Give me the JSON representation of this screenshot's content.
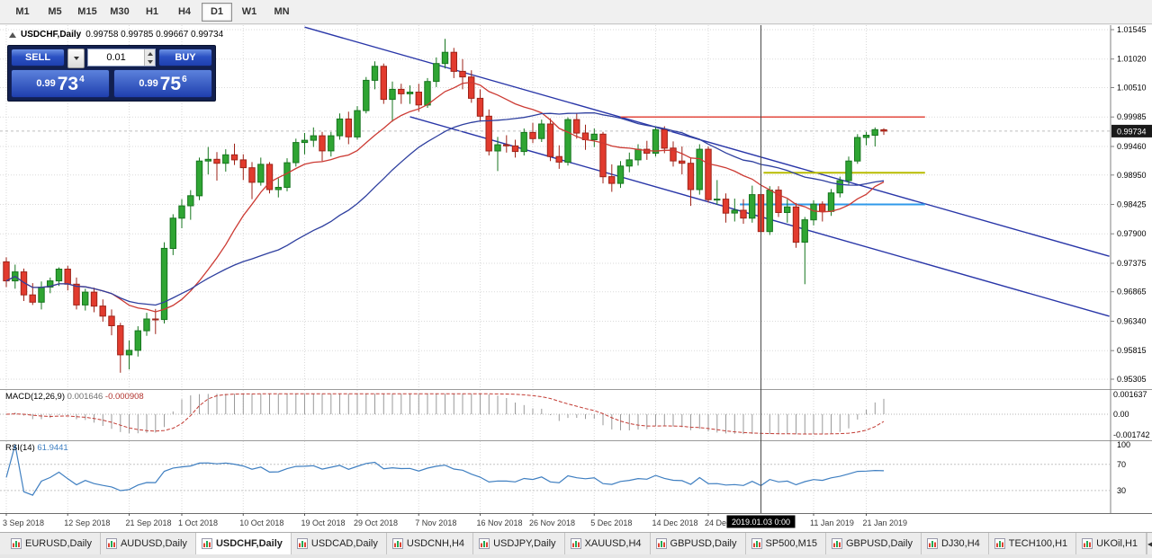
{
  "toolbar": {
    "timeframes": [
      "M1",
      "M5",
      "M15",
      "M30",
      "H1",
      "H4",
      "D1",
      "W1",
      "MN"
    ],
    "active": "D1"
  },
  "chart": {
    "title_symbol": "USDCHF,Daily",
    "title_ohlc": "0.99758 0.99785 0.99667 0.99734",
    "price_axis_labels": [
      "1.01545",
      "1.01020",
      "1.00510",
      "0.99985",
      "0.99460",
      "0.98950",
      "0.98425",
      "0.97900",
      "0.97375",
      "0.96865",
      "0.96340",
      "0.95815",
      "0.95305"
    ],
    "current_price_tag": "0.99734"
  },
  "trade_panel": {
    "sell_label": "SELL",
    "buy_label": "BUY",
    "volume_value": "0.01",
    "sell_price_main": "0.99",
    "sell_price_big": "73",
    "sell_price_sup": "4",
    "buy_price_main": "0.99",
    "buy_price_big": "75",
    "buy_price_sup": "6"
  },
  "macd_panel": {
    "label": "MACD(12,26,9)",
    "value_main": "0.001646",
    "value_signal": "-0.000908",
    "axis_labels": [
      "0.001637",
      "0.00",
      "-0.001742"
    ]
  },
  "rsi_panel": {
    "label": "RSI(14)",
    "value": "61.9441",
    "axis_labels": [
      "100",
      "70",
      "30"
    ]
  },
  "tab_bar": {
    "scroll_left": "◀",
    "scroll_right": "▶"
  },
  "tabs": [
    "EURUSD,Daily",
    "AUDUSD,Daily",
    "USDCHF,Daily",
    "USDCAD,Daily",
    "USDCNH,H4",
    "USDJPY,Daily",
    "XAUUSD,H4",
    "GBPUSD,Daily",
    "SP500,M15",
    "GBPUSD,Daily",
    "DJ30,H4",
    "TECH100,H1",
    "UKOil,H1"
  ],
  "active_tab": "USDCHF,Daily",
  "colors": {
    "candle_up": "#2fa533",
    "candle_up_border": "#17761f",
    "candle_down": "#e23b2e",
    "candle_down_border": "#9e2318",
    "channel": "#2936a8",
    "macd_histogram": "#9a9a9a",
    "macd_signal": "#c23b33",
    "rsi_line": "#3f7fc1",
    "hline_resistance": "#e0382d",
    "hline_yellow": "#b8bb00",
    "hline_blue": "#2f99ea",
    "buy_sell_button": "#2c52c4",
    "trade_panel_bg": "#12204f"
  },
  "chart_data": {
    "type": "candlestick",
    "symbol": "USDCHF",
    "timeframe": "Daily",
    "current_ohlc": {
      "open": 0.99758,
      "high": 0.99785,
      "low": 0.99667,
      "close": 0.99734
    },
    "price_range": {
      "top": 1.01545,
      "bottom": 0.95305
    },
    "crosshair": {
      "index": 86,
      "label": "2019.01.03 0:00"
    },
    "x_tick_labels": [
      {
        "i": 0,
        "label": "3 Sep 2018"
      },
      {
        "i": 7,
        "label": "12 Sep 2018"
      },
      {
        "i": 14,
        "label": "21 Sep 2018"
      },
      {
        "i": 20,
        "label": "1 Oct 2018"
      },
      {
        "i": 27,
        "label": "10 Oct 2018"
      },
      {
        "i": 34,
        "label": "19 Oct 2018"
      },
      {
        "i": 40,
        "label": "29 Oct 2018"
      },
      {
        "i": 47,
        "label": "7 Nov 2018"
      },
      {
        "i": 54,
        "label": "16 Nov 2018"
      },
      {
        "i": 60,
        "label": "26 Nov 2018"
      },
      {
        "i": 67,
        "label": "5 Dec 2018"
      },
      {
        "i": 74,
        "label": "14 Dec 2018"
      },
      {
        "i": 80,
        "label": "24 Dec 2018"
      },
      {
        "i": 92,
        "label": "11 Jan 2019"
      },
      {
        "i": 98,
        "label": "21 Jan 2019"
      }
    ],
    "dates": [
      "2018-09-03",
      "2018-09-04",
      "2018-09-05",
      "2018-09-06",
      "2018-09-07",
      "2018-09-10",
      "2018-09-11",
      "2018-09-12",
      "2018-09-13",
      "2018-09-14",
      "2018-09-17",
      "2018-09-18",
      "2018-09-19",
      "2018-09-20",
      "2018-09-21",
      "2018-09-24",
      "2018-09-25",
      "2018-09-26",
      "2018-09-27",
      "2018-09-28",
      "2018-10-01",
      "2018-10-02",
      "2018-10-03",
      "2018-10-04",
      "2018-10-05",
      "2018-10-08",
      "2018-10-09",
      "2018-10-10",
      "2018-10-11",
      "2018-10-12",
      "2018-10-15",
      "2018-10-16",
      "2018-10-17",
      "2018-10-18",
      "2018-10-19",
      "2018-10-22",
      "2018-10-23",
      "2018-10-24",
      "2018-10-25",
      "2018-10-26",
      "2018-10-29",
      "2018-10-30",
      "2018-10-31",
      "2018-11-01",
      "2018-11-02",
      "2018-11-05",
      "2018-11-06",
      "2018-11-07",
      "2018-11-08",
      "2018-11-09",
      "2018-11-12",
      "2018-11-13",
      "2018-11-14",
      "2018-11-15",
      "2018-11-16",
      "2018-11-19",
      "2018-11-20",
      "2018-11-21",
      "2018-11-22",
      "2018-11-23",
      "2018-11-26",
      "2018-11-27",
      "2018-11-28",
      "2018-11-29",
      "2018-11-30",
      "2018-12-03",
      "2018-12-04",
      "2018-12-05",
      "2018-12-06",
      "2018-12-07",
      "2018-12-10",
      "2018-12-11",
      "2018-12-12",
      "2018-12-13",
      "2018-12-14",
      "2018-12-17",
      "2018-12-18",
      "2018-12-19",
      "2018-12-20",
      "2018-12-21",
      "2018-12-24",
      "2018-12-26",
      "2018-12-27",
      "2018-12-28",
      "2018-12-31",
      "2019-01-02",
      "2019-01-03",
      "2019-01-04",
      "2019-01-07",
      "2019-01-08",
      "2019-01-09",
      "2019-01-10",
      "2019-01-11",
      "2019-01-14",
      "2019-01-15",
      "2019-01-16",
      "2019-01-17",
      "2019-01-18",
      "2019-01-21",
      "2019-01-22",
      "2019-01-23"
    ],
    "candles": [
      [
        0.974,
        0.9748,
        0.9695,
        0.9706
      ],
      [
        0.9706,
        0.9735,
        0.9692,
        0.9722
      ],
      [
        0.9722,
        0.9728,
        0.967,
        0.9681
      ],
      [
        0.9681,
        0.9702,
        0.9663,
        0.9668
      ],
      [
        0.9668,
        0.9705,
        0.9655,
        0.9695
      ],
      [
        0.9695,
        0.9712,
        0.9684,
        0.9706
      ],
      [
        0.9706,
        0.973,
        0.9697,
        0.9727
      ],
      [
        0.9727,
        0.9733,
        0.9689,
        0.97
      ],
      [
        0.97,
        0.9712,
        0.9655,
        0.9663
      ],
      [
        0.9663,
        0.9692,
        0.9653,
        0.9686
      ],
      [
        0.9686,
        0.9694,
        0.965,
        0.9661
      ],
      [
        0.9661,
        0.9673,
        0.9633,
        0.9643
      ],
      [
        0.9643,
        0.9655,
        0.9609,
        0.9626
      ],
      [
        0.9626,
        0.9631,
        0.9542,
        0.9574
      ],
      [
        0.9574,
        0.96,
        0.9548,
        0.9582
      ],
      [
        0.9582,
        0.9625,
        0.9571,
        0.9617
      ],
      [
        0.9617,
        0.9649,
        0.9608,
        0.9638
      ],
      [
        0.9638,
        0.9656,
        0.9611,
        0.9637
      ],
      [
        0.9637,
        0.9775,
        0.963,
        0.9764
      ],
      [
        0.9764,
        0.9825,
        0.9752,
        0.9818
      ],
      [
        0.9818,
        0.9852,
        0.98,
        0.984
      ],
      [
        0.984,
        0.9868,
        0.9815,
        0.9858
      ],
      [
        0.9858,
        0.9926,
        0.985,
        0.992
      ],
      [
        0.992,
        0.9945,
        0.9896,
        0.9923
      ],
      [
        0.9923,
        0.9936,
        0.9885,
        0.9916
      ],
      [
        0.9916,
        0.9941,
        0.9901,
        0.9931
      ],
      [
        0.9931,
        0.9951,
        0.9913,
        0.9922
      ],
      [
        0.9922,
        0.9932,
        0.9886,
        0.9908
      ],
      [
        0.9908,
        0.9918,
        0.9852,
        0.9882
      ],
      [
        0.9882,
        0.9926,
        0.9876,
        0.9914
      ],
      [
        0.9914,
        0.9918,
        0.9862,
        0.9869
      ],
      [
        0.9869,
        0.9889,
        0.9855,
        0.9873
      ],
      [
        0.9873,
        0.9925,
        0.9866,
        0.9917
      ],
      [
        0.9917,
        0.996,
        0.991,
        0.9953
      ],
      [
        0.9953,
        0.997,
        0.9932,
        0.9957
      ],
      [
        0.9957,
        0.998,
        0.9945,
        0.9965
      ],
      [
        0.9965,
        0.9972,
        0.992,
        0.9938
      ],
      [
        0.9938,
        0.9972,
        0.9928,
        0.9965
      ],
      [
        0.9965,
        1.0005,
        0.9958,
        0.9995
      ],
      [
        0.9995,
        1.0008,
        0.995,
        0.9963
      ],
      [
        0.9963,
        1.0018,
        0.9958,
        1.001
      ],
      [
        1.001,
        1.007,
        1.0005,
        1.0064
      ],
      [
        1.0064,
        1.0098,
        1.0048,
        1.0089
      ],
      [
        1.0089,
        1.0094,
        1.0022,
        1.003
      ],
      [
        1.003,
        1.0062,
        0.999,
        1.0048
      ],
      [
        1.0048,
        1.0058,
        1.0022,
        1.004
      ],
      [
        1.004,
        1.0055,
        1.0022,
        1.0043
      ],
      [
        1.0043,
        1.0058,
        1.0008,
        1.002
      ],
      [
        1.002,
        1.0068,
        1.0015,
        1.0062
      ],
      [
        1.0062,
        1.0105,
        1.0052,
        1.0094
      ],
      [
        1.0094,
        1.0138,
        1.0085,
        1.0114
      ],
      [
        1.0114,
        1.0122,
        1.0068,
        1.008
      ],
      [
        1.008,
        1.0102,
        1.0048,
        1.007
      ],
      [
        1.007,
        1.0082,
        1.0024,
        1.0032
      ],
      [
        1.0032,
        1.0048,
        0.999,
        1.0
      ],
      [
        1.0,
        1.0012,
        0.993,
        0.9938
      ],
      [
        0.9938,
        0.9963,
        0.9902,
        0.9949
      ],
      [
        0.9949,
        0.9966,
        0.9935,
        0.9947
      ],
      [
        0.9947,
        0.9958,
        0.9926,
        0.9937
      ],
      [
        0.9937,
        0.9978,
        0.993,
        0.9971
      ],
      [
        0.9971,
        0.9988,
        0.9952,
        0.996
      ],
      [
        0.996,
        0.9994,
        0.9954,
        0.9986
      ],
      [
        0.9986,
        0.9996,
        0.992,
        0.9928
      ],
      [
        0.9928,
        0.9948,
        0.9906,
        0.9918
      ],
      [
        0.9918,
        0.9998,
        0.9912,
        0.9994
      ],
      [
        0.9994,
        1.0005,
        0.996,
        0.997
      ],
      [
        0.997,
        0.9985,
        0.994,
        0.9958
      ],
      [
        0.9958,
        0.9978,
        0.9945,
        0.9968
      ],
      [
        0.9968,
        0.9972,
        0.988,
        0.9892
      ],
      [
        0.9892,
        0.9914,
        0.9865,
        0.988
      ],
      [
        0.988,
        0.992,
        0.9872,
        0.9911
      ],
      [
        0.9911,
        0.9935,
        0.99,
        0.9922
      ],
      [
        0.9922,
        0.995,
        0.9912,
        0.9941
      ],
      [
        0.9941,
        0.9956,
        0.9922,
        0.9934
      ],
      [
        0.9934,
        0.9982,
        0.9928,
        0.9976
      ],
      [
        0.9976,
        0.9982,
        0.9934,
        0.9943
      ],
      [
        0.9943,
        0.9955,
        0.991,
        0.992
      ],
      [
        0.992,
        0.9946,
        0.9896,
        0.9916
      ],
      [
        0.9916,
        0.9926,
        0.984,
        0.9869
      ],
      [
        0.9869,
        0.995,
        0.986,
        0.9941
      ],
      [
        0.9941,
        0.9946,
        0.9846,
        0.9851
      ],
      [
        0.9851,
        0.9886,
        0.9842,
        0.9852
      ],
      [
        0.9852,
        0.9862,
        0.981,
        0.9827
      ],
      [
        0.9827,
        0.9853,
        0.9812,
        0.9832
      ],
      [
        0.9832,
        0.9852,
        0.9808,
        0.9818
      ],
      [
        0.9818,
        0.9876,
        0.981,
        0.986
      ],
      [
        0.986,
        0.987,
        0.977,
        0.9794
      ],
      [
        0.9794,
        0.9875,
        0.9788,
        0.9868
      ],
      [
        0.9868,
        0.9875,
        0.982,
        0.9828
      ],
      [
        0.9828,
        0.9852,
        0.981,
        0.9838
      ],
      [
        0.9838,
        0.9845,
        0.9765,
        0.9775
      ],
      [
        0.9775,
        0.982,
        0.97,
        0.9815
      ],
      [
        0.9815,
        0.985,
        0.9805,
        0.9843
      ],
      [
        0.9843,
        0.9848,
        0.9812,
        0.983
      ],
      [
        0.983,
        0.987,
        0.9822,
        0.9863
      ],
      [
        0.9863,
        0.9892,
        0.9855,
        0.9885
      ],
      [
        0.9885,
        0.9928,
        0.9878,
        0.992
      ],
      [
        0.992,
        0.9968,
        0.9915,
        0.9962
      ],
      [
        0.9962,
        0.9972,
        0.9948,
        0.9966
      ],
      [
        0.9966,
        0.998,
        0.9946,
        0.9976
      ],
      [
        0.99758,
        0.99785,
        0.99667,
        0.99734
      ]
    ],
    "overlays": {
      "ma_fast": {
        "type": "sma",
        "period": 13,
        "color": "#cc3a33"
      },
      "ma_slow": {
        "type": "sma",
        "period": 30,
        "color": "#2e3f9f"
      },
      "channel_lines": [
        {
          "i1": 34,
          "p1": 1.0159,
          "i2": 125.7,
          "p2": 0.975
        },
        {
          "i1": 46,
          "p1": 0.9999,
          "i2": 125.7,
          "p2": 0.9643
        }
      ],
      "h_lines": [
        {
          "name": "resistance-red",
          "price": 0.99985,
          "i1": 70,
          "i2": 104.7,
          "color": "#e0382d",
          "width": 1.4
        },
        {
          "name": "level-yellow",
          "price": 0.9899,
          "i1": 86.3,
          "i2": 104.7,
          "color": "#b8bb00",
          "width": 2
        },
        {
          "name": "level-blue",
          "price": 0.98425,
          "i1": 83.6,
          "i2": 104.7,
          "color": "#2f99ea",
          "width": 2
        }
      ]
    }
  }
}
